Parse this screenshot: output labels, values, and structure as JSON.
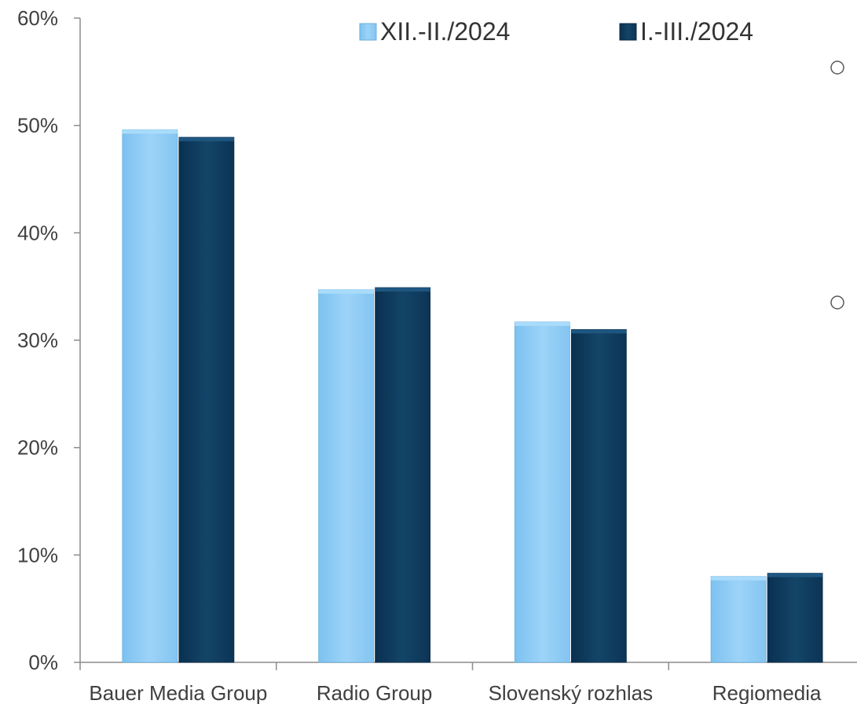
{
  "chart_data": {
    "type": "bar",
    "title": "",
    "xlabel": "",
    "ylabel": "",
    "categories": [
      "Bauer Media Group",
      "Radio Group",
      "Slovenský rozhlas",
      "Regiomedia"
    ],
    "series": [
      {
        "name": "XII.-II./2024",
        "values": [
          49.6,
          34.7,
          31.7,
          8.0
        ],
        "color": "#93cdf5"
      },
      {
        "name": "I.-III./2024",
        "values": [
          48.9,
          34.9,
          31.0,
          8.3
        ],
        "color": "#0f3a5e"
      }
    ],
    "ylim": [
      0,
      60
    ],
    "yticks": [
      "0%",
      "10%",
      "20%",
      "30%",
      "40%",
      "50%",
      "60%"
    ],
    "ytick_values": [
      0,
      10,
      20,
      30,
      40,
      50,
      60
    ],
    "grid": false,
    "legend_position": "top"
  }
}
